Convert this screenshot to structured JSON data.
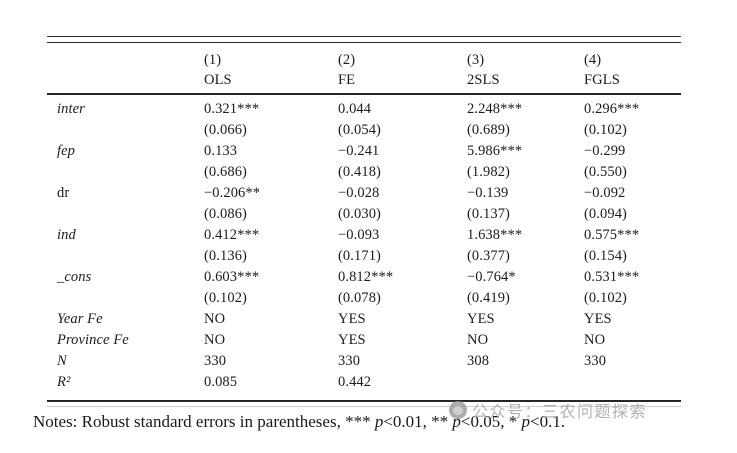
{
  "table": {
    "columns": [
      {
        "num": "(1)",
        "name": "OLS"
      },
      {
        "num": "(2)",
        "name": "FE"
      },
      {
        "num": "(3)",
        "name": "2SLS"
      },
      {
        "num": "(4)",
        "name": "FGLS"
      }
    ],
    "lines": [
      {
        "label": "inter",
        "cells": [
          "0.321***",
          "0.044",
          "2.248***",
          "0.296***"
        ]
      },
      {
        "label": "",
        "cells": [
          "(0.066)",
          "(0.054)",
          "(0.689)",
          "(0.102)"
        ]
      },
      {
        "label": "fep",
        "cells": [
          "0.133",
          "−0.241",
          "5.986***",
          "−0.299"
        ]
      },
      {
        "label": "",
        "cells": [
          "(0.686)",
          "(0.418)",
          "(1.982)",
          "(0.550)"
        ]
      },
      {
        "label": "dr",
        "cells": [
          "−0.206**",
          "−0.028",
          "−0.139",
          "−0.092"
        ]
      },
      {
        "label": "",
        "cells": [
          "(0.086)",
          "(0.030)",
          "(0.137)",
          "(0.094)"
        ]
      },
      {
        "label": "ind",
        "cells": [
          "0.412***",
          "−0.093",
          "1.638***",
          "0.575***"
        ]
      },
      {
        "label": "",
        "cells": [
          "(0.136)",
          "(0.171)",
          "(0.377)",
          "(0.154)"
        ]
      },
      {
        "label": "_cons",
        "cells": [
          "0.603***",
          "0.812***",
          "−0.764*",
          "0.531***"
        ]
      },
      {
        "label": "",
        "cells": [
          "(0.102)",
          "(0.078)",
          "(0.419)",
          "(0.102)"
        ]
      },
      {
        "label": "Year Fe",
        "cells": [
          "NO",
          "YES",
          "YES",
          "YES"
        ]
      },
      {
        "label": "Province Fe",
        "cells": [
          "NO",
          "YES",
          "NO",
          "NO"
        ]
      },
      {
        "label": "N",
        "cells": [
          "330",
          "330",
          "308",
          "330"
        ]
      },
      {
        "label": "R²",
        "cells": [
          "0.085",
          "0.442",
          "",
          ""
        ]
      }
    ]
  },
  "notes": {
    "segments": [
      {
        "text": "Notes: Robust standard errors in parentheses, *** "
      },
      {
        "text": "p"
      },
      {
        "text": "<0.01, ** "
      },
      {
        "text": "p"
      },
      {
        "text": "<0.05, * "
      },
      {
        "text": "p"
      },
      {
        "text": "<0.1."
      }
    ]
  },
  "watermark": {
    "text": "公众号：三农问题探索"
  }
}
